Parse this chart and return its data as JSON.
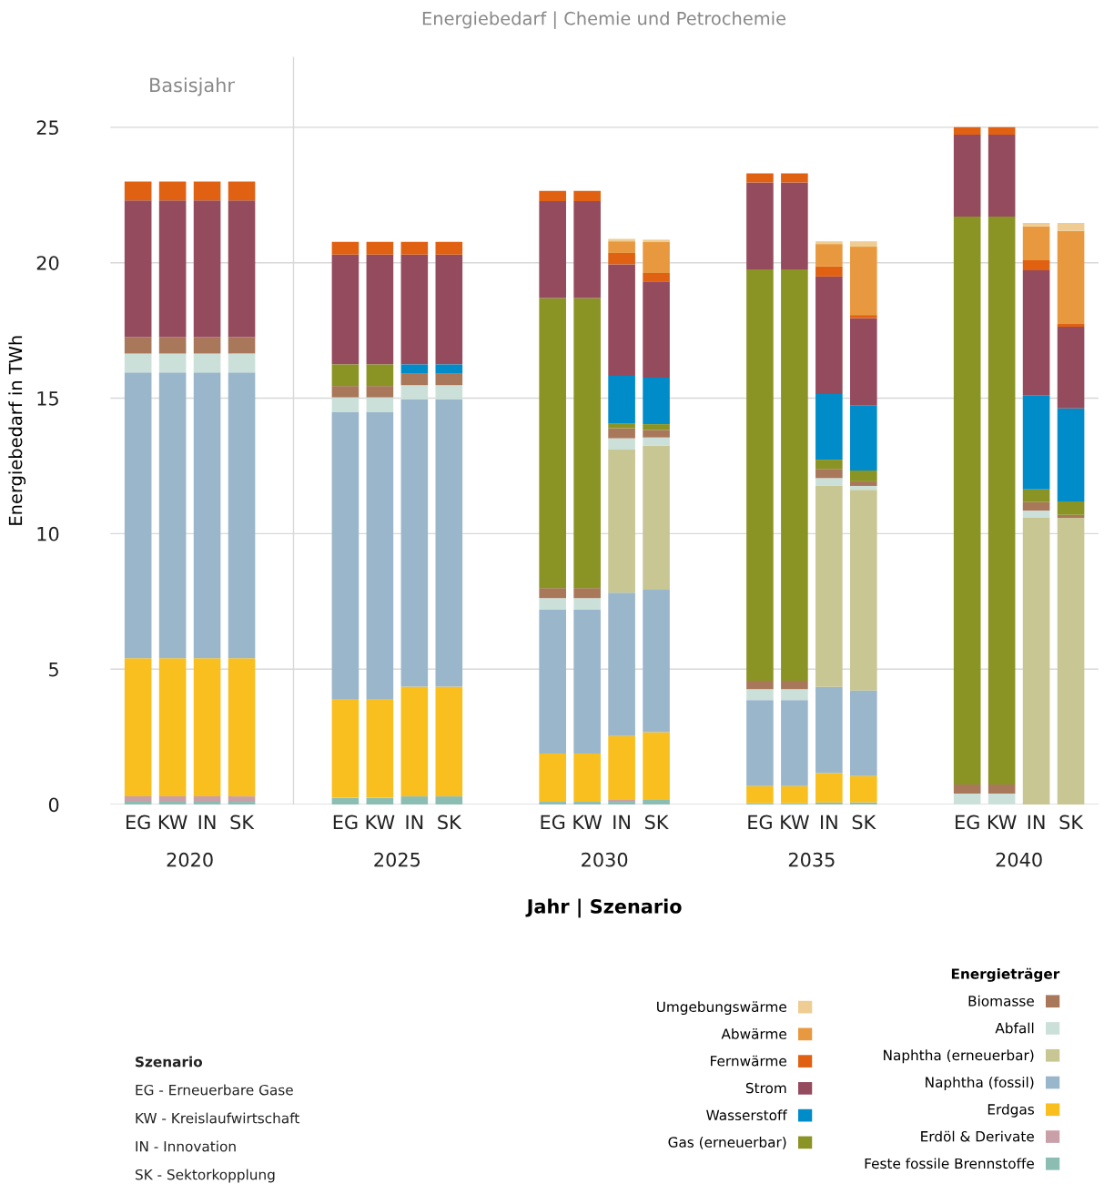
{
  "chart_data": {
    "type": "bar",
    "stacked": true,
    "title": "Energiebedarf | Chemie und Petrochemie",
    "xlabel": "Jahr | Szenario",
    "ylabel": "Energiebedarf in TWh",
    "legend_title": "Energieträger",
    "categories": [
      "EG",
      "KW",
      "IN",
      "SK",
      null,
      null,
      "EG",
      "KW",
      "IN",
      "SK",
      null,
      null,
      "EG",
      "KW",
      "IN",
      "SK",
      null,
      null,
      "EG",
      "KW",
      "IN",
      "SK",
      null,
      null,
      "EG",
      "KW",
      "IN",
      "SK"
    ],
    "ylim": [
      0,
      27.6
    ],
    "yticks": [
      0,
      5,
      10,
      15,
      20,
      25
    ],
    "grid": "y",
    "legend": "bottom right",
    "series": [
      {
        "name": "Feste fossile Brennstoffe",
        "color": "#8bbdb3",
        "values": [
          0.1,
          0.1,
          0.1,
          0.1,
          null,
          null,
          0.25,
          0.25,
          0.3,
          0.3,
          null,
          null,
          0.1,
          0.1,
          0.1,
          0.17,
          null,
          null,
          0.05,
          0.05,
          0.08,
          0.08,
          null,
          null,
          0,
          0,
          0,
          0
        ]
      },
      {
        "name": "Erdöl & Derivate",
        "color": "#c9a0a8",
        "values": [
          0.2,
          0.2,
          0.2,
          0.2,
          null,
          null,
          0,
          0,
          0,
          0,
          null,
          null,
          0,
          0,
          0.07,
          0,
          null,
          null,
          0,
          0,
          0,
          0,
          null,
          null,
          0,
          0,
          0,
          0
        ]
      },
      {
        "name": "Erdgas",
        "color": "#f9bf1e",
        "values": [
          5.1,
          5.1,
          5.1,
          5.1,
          null,
          null,
          3.65,
          3.65,
          4.05,
          4.05,
          null,
          null,
          1.78,
          1.78,
          2.36,
          2.5,
          null,
          null,
          0.63,
          0.63,
          1.08,
          0.97,
          null,
          null,
          0,
          0,
          0,
          0
        ]
      },
      {
        "name": "Naphtha (fossil)",
        "color": "#9ab6cb",
        "values": [
          10.55,
          10.55,
          10.55,
          10.55,
          null,
          null,
          10.6,
          10.6,
          10.6,
          10.6,
          null,
          null,
          5.31,
          5.31,
          5.29,
          5.26,
          null,
          null,
          3.18,
          3.18,
          3.18,
          3.16,
          null,
          null,
          0,
          0,
          0,
          0
        ]
      },
      {
        "name": "Naphtha (erneuerbar)",
        "color": "#c8c693",
        "values": [
          0,
          0,
          0,
          0,
          null,
          null,
          0,
          0,
          0,
          0,
          null,
          null,
          0,
          0,
          5.28,
          5.31,
          null,
          null,
          0,
          0,
          7.42,
          7.41,
          null,
          null,
          0,
          0,
          10.58,
          10.58
        ]
      },
      {
        "name": "Abfall",
        "color": "#cce0da",
        "values": [
          0.7,
          0.7,
          0.7,
          0.7,
          null,
          null,
          0.53,
          0.53,
          0.53,
          0.53,
          null,
          null,
          0.43,
          0.43,
          0.42,
          0.31,
          null,
          null,
          0.4,
          0.4,
          0.29,
          0.14,
          null,
          null,
          0.4,
          0.4,
          0.27,
          0
        ]
      },
      {
        "name": "Biomasse",
        "color": "#a9785b",
        "values": [
          0.6,
          0.6,
          0.6,
          0.6,
          null,
          null,
          0.42,
          0.42,
          0.42,
          0.42,
          null,
          null,
          0.37,
          0.37,
          0.37,
          0.28,
          null,
          null,
          0.31,
          0.31,
          0.34,
          0.17,
          null,
          null,
          0.34,
          0.34,
          0.31,
          0.11
        ]
      },
      {
        "name": "Gas (erneuerbar)",
        "color": "#8a9424",
        "values": [
          0,
          0,
          0,
          0,
          null,
          null,
          0.8,
          0.8,
          0,
          0,
          null,
          null,
          10.71,
          10.71,
          0.18,
          0.21,
          null,
          null,
          15.18,
          15.18,
          0.34,
          0.4,
          null,
          null,
          20.96,
          20.96,
          0.47,
          0.5
        ]
      },
      {
        "name": "Wasserstoff",
        "color": "#008cc8",
        "values": [
          0,
          0,
          0,
          0,
          null,
          null,
          0,
          0,
          0.35,
          0.35,
          null,
          null,
          0,
          0,
          1.75,
          1.72,
          null,
          null,
          0,
          0,
          2.42,
          2.39,
          null,
          null,
          0,
          0,
          3.46,
          3.43
        ]
      },
      {
        "name": "Strom",
        "color": "#954b5e",
        "values": [
          5.05,
          5.05,
          5.05,
          5.05,
          null,
          null,
          4.05,
          4.05,
          4.05,
          4.05,
          null,
          null,
          3.57,
          3.57,
          4.12,
          3.55,
          null,
          null,
          3.21,
          3.21,
          4.34,
          3.23,
          null,
          null,
          3.03,
          3.03,
          4.63,
          3.02
        ]
      },
      {
        "name": "Fernwärme",
        "color": "#e06112",
        "values": [
          0.7,
          0.7,
          0.7,
          0.7,
          null,
          null,
          0.47,
          0.47,
          0.47,
          0.47,
          null,
          null,
          0.38,
          0.38,
          0.42,
          0.31,
          null,
          null,
          0.34,
          0.34,
          0.37,
          0.12,
          null,
          null,
          0.27,
          0.27,
          0.37,
          0.1
        ]
      },
      {
        "name": "Abwärme",
        "color": "#e8993f",
        "values": [
          0,
          0,
          0,
          0,
          null,
          null,
          0,
          0,
          0,
          0,
          null,
          null,
          0,
          0,
          0.43,
          1.14,
          null,
          null,
          0,
          0,
          0.83,
          2.52,
          null,
          null,
          0,
          0,
          1.25,
          3.43
        ]
      },
      {
        "name": "Umgebungswärme",
        "color": "#efcd92",
        "values": [
          0,
          0,
          0,
          0,
          null,
          null,
          0,
          0,
          0,
          0,
          null,
          null,
          0,
          0,
          0.09,
          0.09,
          null,
          null,
          0,
          0,
          0.1,
          0.2,
          null,
          null,
          0,
          0,
          0.13,
          0.3
        ]
      }
    ],
    "annotations": [
      "Basisjahr",
      "2020",
      "2025",
      "2030",
      "2035",
      "2040",
      "Szenario",
      "EG - Erneuerbare Gase",
      "KW - Kreislaufwirtschaft",
      "IN - Innovation",
      "SK - Sektorkopplung"
    ]
  }
}
